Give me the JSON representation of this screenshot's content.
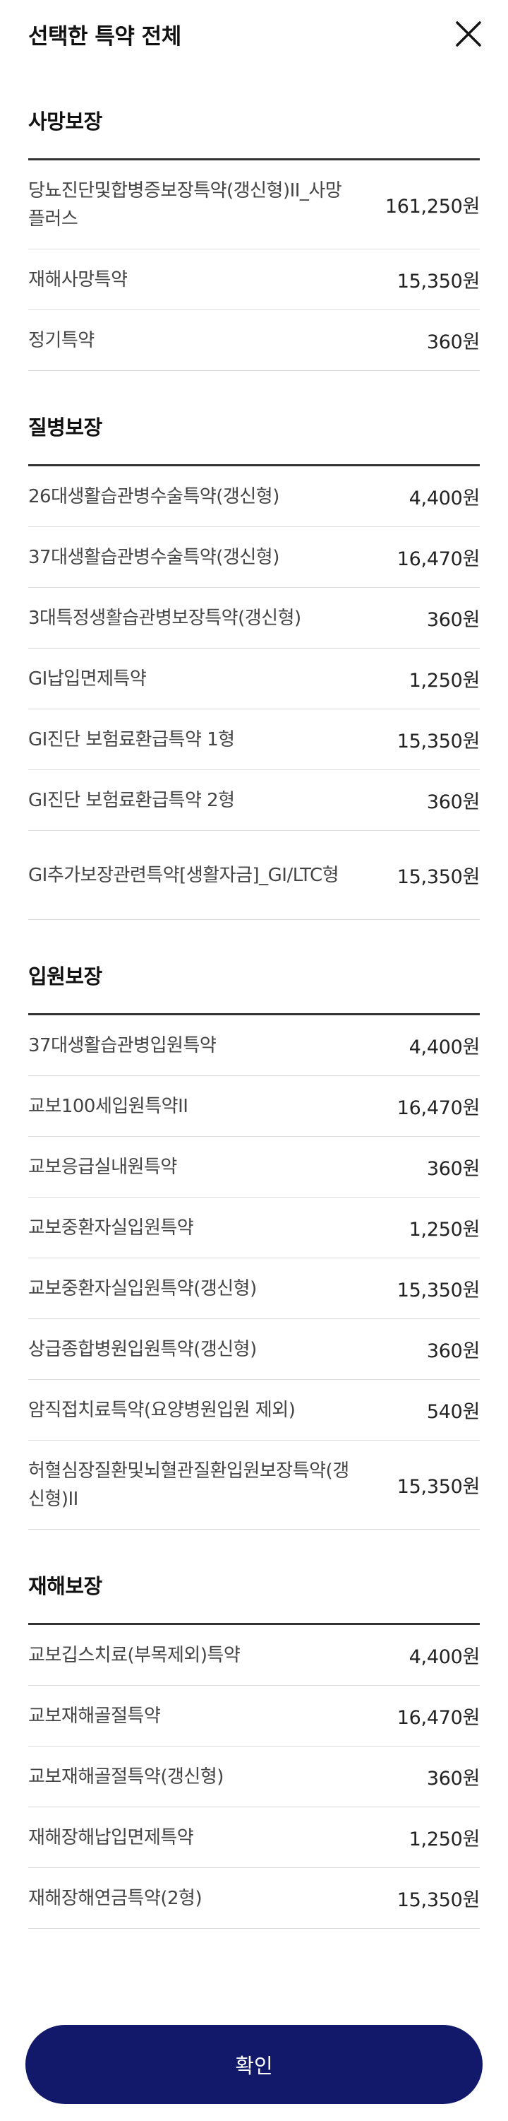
{
  "header": {
    "title": "선택한 특약 전체",
    "close_icon": "close-icon"
  },
  "sections": [
    {
      "title": "사망보장",
      "rows": [
        {
          "name": "당뇨진단및합병증보장특약(갱신형)II_사망플러스",
          "price": "161,250원"
        },
        {
          "name": "재해사망특약",
          "price": "15,350원"
        },
        {
          "name": "정기특약",
          "price": "360원"
        }
      ]
    },
    {
      "title": "질병보장",
      "rows": [
        {
          "name": "26대생활습관병수술특약(갱신형)",
          "price": "4,400원"
        },
        {
          "name": "37대생활습관병수술특약(갱신형)",
          "price": "16,470원"
        },
        {
          "name": "3대특정생활습관병보장특약(갱신형)",
          "price": "360원"
        },
        {
          "name": "GI납입면제특약",
          "price": "1,250원"
        },
        {
          "name": "GI진단 보험료환급특약 1형",
          "price": "15,350원"
        },
        {
          "name": "GI진단 보험료환급특약 2형",
          "price": "360원"
        },
        {
          "name": "GI추가보장관련특약[생활자금]_GI/LTC형",
          "price": "15,350원"
        }
      ]
    },
    {
      "title": "입원보장",
      "rows": [
        {
          "name": "37대생활습관병입원특약",
          "price": "4,400원"
        },
        {
          "name": "교보100세입원특약II",
          "price": "16,470원"
        },
        {
          "name": "교보응급실내원특약",
          "price": "360원"
        },
        {
          "name": "교보중환자실입원특약",
          "price": "1,250원"
        },
        {
          "name": "교보중환자실입원특약(갱신형)",
          "price": "15,350원"
        },
        {
          "name": "상급종합병원입원특약(갱신형)",
          "price": "360원"
        },
        {
          "name": "암직접치료특약(요양병원입원 제외)",
          "price": "540원"
        },
        {
          "name": "허혈심장질환및뇌혈관질환입원보장특약(갱신형)II",
          "price": "15,350원"
        }
      ]
    },
    {
      "title": "재해보장",
      "rows": [
        {
          "name": "교보깁스치료(부목제외)특약",
          "price": "4,400원"
        },
        {
          "name": "교보재해골절특약",
          "price": "16,470원"
        },
        {
          "name": "교보재해골절특약(갱신형)",
          "price": "360원"
        },
        {
          "name": "재해장해납입면제특약",
          "price": "1,250원"
        },
        {
          "name": "재해장해연금특약(2형)",
          "price": "15,350원"
        }
      ]
    }
  ],
  "footer": {
    "confirm_label": "확인"
  }
}
